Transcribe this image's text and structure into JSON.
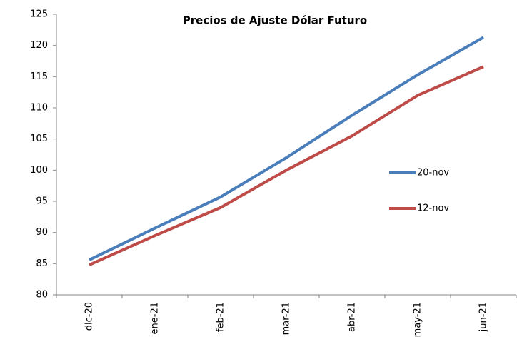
{
  "chart_data": {
    "type": "line",
    "title": "Precios de Ajuste Dólar Futuro",
    "categories": [
      "dic-20",
      "ene-21",
      "feb-21",
      "mar-21",
      "abr-21",
      "may-21",
      "jun-21"
    ],
    "series": [
      {
        "name": "20-nov",
        "color": "#4a7ebb",
        "values": [
          85.6,
          90.7,
          95.7,
          102,
          108.8,
          115.3,
          121.3
        ]
      },
      {
        "name": "12-nov",
        "color": "#be4b48",
        "values": [
          84.8,
          89.5,
          94,
          100,
          105.5,
          112,
          116.6
        ]
      }
    ],
    "ylim": [
      80,
      125
    ],
    "yticks": [
      80,
      85,
      90,
      95,
      100,
      105,
      110,
      115,
      120,
      125
    ],
    "grid": false
  }
}
